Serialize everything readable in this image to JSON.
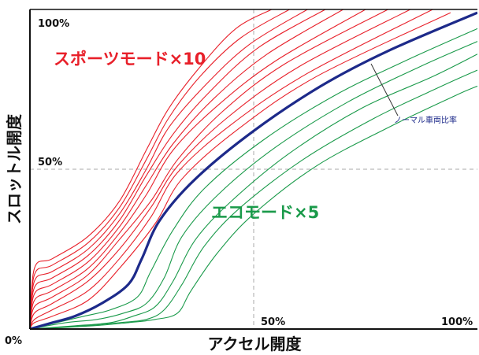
{
  "chart_data": {
    "type": "line",
    "xlabel": "アクセル開度",
    "ylabel": "スロットル開度",
    "xlim": [
      0,
      100
    ],
    "ylim": [
      0,
      100
    ],
    "origin_label": "0%",
    "x_tick_labels": [
      "50%",
      "100%"
    ],
    "y_tick_labels": [
      "50%",
      "100%"
    ],
    "grid": "dashed at 50%",
    "annotations": {
      "sport": "スポーツモード×10",
      "eco": "エコモード×5",
      "normal": "ノーマル車両比率"
    },
    "colors": {
      "sport": "#e8202a",
      "eco": "#1a9a4a",
      "normal": "#1d2a8a",
      "grid": "#aaaaaa",
      "axis": "#111111"
    },
    "series": [
      {
        "group": "sport",
        "level": 10,
        "values": [
          [
            0,
            0
          ],
          [
            1,
            19
          ],
          [
            5,
            22
          ],
          [
            13,
            29
          ],
          [
            20,
            40
          ],
          [
            26,
            56
          ],
          [
            31,
            69
          ],
          [
            38,
            82
          ],
          [
            46,
            94
          ],
          [
            54,
            100
          ]
        ]
      },
      {
        "group": "sport",
        "level": 9,
        "values": [
          [
            0,
            0
          ],
          [
            1,
            17
          ],
          [
            5,
            20
          ],
          [
            13,
            27
          ],
          [
            20,
            38
          ],
          [
            26,
            53
          ],
          [
            31,
            66
          ],
          [
            38,
            79
          ],
          [
            47,
            91
          ],
          [
            58,
            100
          ]
        ]
      },
      {
        "group": "sport",
        "level": 8,
        "values": [
          [
            0,
            0
          ],
          [
            1,
            15
          ],
          [
            5,
            18
          ],
          [
            13,
            25
          ],
          [
            20,
            36
          ],
          [
            26,
            50
          ],
          [
            31,
            63
          ],
          [
            39,
            76
          ],
          [
            49,
            89
          ],
          [
            62,
            100
          ]
        ]
      },
      {
        "group": "sport",
        "level": 7,
        "values": [
          [
            0,
            0
          ],
          [
            1,
            13
          ],
          [
            5,
            16
          ],
          [
            13,
            23
          ],
          [
            20,
            34
          ],
          [
            26,
            48
          ],
          [
            32,
            61
          ],
          [
            40,
            74
          ],
          [
            51,
            88
          ],
          [
            66,
            100
          ]
        ]
      },
      {
        "group": "sport",
        "level": 6,
        "values": [
          [
            0,
            0
          ],
          [
            1,
            11
          ],
          [
            5,
            14
          ],
          [
            13,
            21
          ],
          [
            20,
            32
          ],
          [
            26,
            45
          ],
          [
            32,
            58
          ],
          [
            41,
            72
          ],
          [
            53,
            86
          ],
          [
            70,
            100
          ]
        ]
      },
      {
        "group": "sport",
        "level": 5,
        "values": [
          [
            0,
            0
          ],
          [
            1,
            9
          ],
          [
            5,
            12
          ],
          [
            13,
            19
          ],
          [
            20,
            30
          ],
          [
            26,
            42
          ],
          [
            32,
            56
          ],
          [
            42,
            70
          ],
          [
            55,
            84
          ],
          [
            75,
            100
          ]
        ]
      },
      {
        "group": "sport",
        "level": 4,
        "values": [
          [
            0,
            0
          ],
          [
            1,
            7
          ],
          [
            5,
            10
          ],
          [
            13,
            17
          ],
          [
            20,
            28
          ],
          [
            27,
            40
          ],
          [
            33,
            53
          ],
          [
            43,
            68
          ],
          [
            57,
            83
          ],
          [
            80,
            100
          ]
        ]
      },
      {
        "group": "sport",
        "level": 3,
        "values": [
          [
            0,
            0
          ],
          [
            1,
            5
          ],
          [
            5,
            8
          ],
          [
            13,
            15
          ],
          [
            20,
            25
          ],
          [
            27,
            38
          ],
          [
            33,
            51
          ],
          [
            44,
            66
          ],
          [
            60,
            82
          ],
          [
            85,
            100
          ]
        ]
      },
      {
        "group": "sport",
        "level": 2,
        "values": [
          [
            0,
            0
          ],
          [
            1,
            3
          ],
          [
            5,
            6
          ],
          [
            13,
            12
          ],
          [
            20,
            22
          ],
          [
            27,
            35
          ],
          [
            33,
            49
          ],
          [
            45,
            64
          ],
          [
            62,
            80
          ],
          [
            90,
            100
          ]
        ]
      },
      {
        "group": "sport",
        "level": 1,
        "values": [
          [
            0,
            0
          ],
          [
            1,
            2
          ],
          [
            5,
            4
          ],
          [
            13,
            9
          ],
          [
            20,
            19
          ],
          [
            28,
            33
          ],
          [
            34,
            47
          ],
          [
            46,
            62
          ],
          [
            64,
            79
          ],
          [
            94,
            99
          ]
        ]
      },
      {
        "group": "normal",
        "level": 0,
        "values": [
          [
            0,
            0
          ],
          [
            5,
            2
          ],
          [
            10,
            4
          ],
          [
            16,
            8
          ],
          [
            22,
            14
          ],
          [
            25,
            22
          ],
          [
            29,
            34
          ],
          [
            37,
            47
          ],
          [
            50,
            62
          ],
          [
            65,
            76
          ],
          [
            80,
            87
          ],
          [
            100,
            99
          ]
        ]
      },
      {
        "group": "eco",
        "level": 1,
        "values": [
          [
            0,
            0
          ],
          [
            6,
            2
          ],
          [
            12,
            4
          ],
          [
            18,
            6
          ],
          [
            24,
            10
          ],
          [
            27,
            18
          ],
          [
            32,
            31
          ],
          [
            39,
            44
          ],
          [
            52,
            59
          ],
          [
            68,
            73
          ],
          [
            84,
            84
          ],
          [
            100,
            94
          ]
        ]
      },
      {
        "group": "eco",
        "level": 2,
        "values": [
          [
            0,
            0
          ],
          [
            8,
            2
          ],
          [
            15,
            3
          ],
          [
            21,
            5
          ],
          [
            26,
            8
          ],
          [
            30,
            16
          ],
          [
            34,
            29
          ],
          [
            42,
            42
          ],
          [
            55,
            57
          ],
          [
            71,
            71
          ],
          [
            87,
            82
          ],
          [
            100,
            90
          ]
        ]
      },
      {
        "group": "eco",
        "level": 3,
        "values": [
          [
            0,
            0
          ],
          [
            10,
            1
          ],
          [
            18,
            2
          ],
          [
            23,
            4
          ],
          [
            28,
            7
          ],
          [
            32,
            15
          ],
          [
            37,
            28
          ],
          [
            45,
            40
          ],
          [
            58,
            55
          ],
          [
            74,
            69
          ],
          [
            90,
            79
          ],
          [
            100,
            86
          ]
        ]
      },
      {
        "group": "eco",
        "level": 4,
        "values": [
          [
            0,
            0
          ],
          [
            12,
            1
          ],
          [
            20,
            2
          ],
          [
            26,
            3
          ],
          [
            30,
            6
          ],
          [
            34,
            14
          ],
          [
            39,
            26
          ],
          [
            47,
            38
          ],
          [
            61,
            53
          ],
          [
            77,
            66
          ],
          [
            92,
            76
          ],
          [
            100,
            81
          ]
        ]
      },
      {
        "group": "eco",
        "level": 5,
        "values": [
          [
            0,
            0
          ],
          [
            14,
            1
          ],
          [
            22,
            2
          ],
          [
            28,
            3
          ],
          [
            33,
            5
          ],
          [
            36,
            12
          ],
          [
            42,
            24
          ],
          [
            50,
            36
          ],
          [
            64,
            51
          ],
          [
            80,
            63
          ],
          [
            95,
            73
          ],
          [
            100,
            76
          ]
        ]
      }
    ]
  }
}
